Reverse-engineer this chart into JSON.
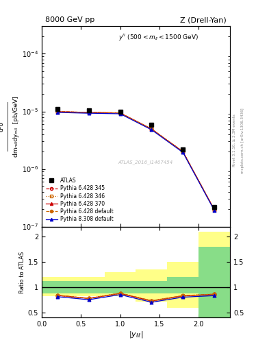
{
  "title_left": "8000 GeV pp",
  "title_right": "Z (Drell-Yan)",
  "annotation": "y^{ll} (500 < m_{ll} < 1500 GeV)",
  "watermark": "ATLAS_2016_I1467454",
  "right_label_top": "Rivet 3.1.10, ≥ 2.3M events",
  "right_label_bot": "mcplots.cern.ch [arXiv:1306.3436]",
  "xlabel": "|y_{ellell}|",
  "x_data": [
    0.2,
    0.6,
    1.0,
    1.4,
    1.8,
    2.2
  ],
  "atlas_y": [
    1.1e-05,
    1.05e-05,
    9.8e-06,
    5.8e-06,
    2.2e-06,
    2.2e-07
  ],
  "pythia_345_y": [
    9.9e-06,
    9.6e-06,
    9.4e-06,
    4.95e-06,
    2e-06,
    1.97e-07
  ],
  "pythia_346_y": [
    9.9e-06,
    9.6e-06,
    9.4e-06,
    4.95e-06,
    2e-06,
    1.97e-07
  ],
  "pythia_370_y": [
    9.9e-06,
    9.6e-06,
    9.4e-06,
    4.95e-06,
    2e-06,
    1.97e-07
  ],
  "pythia_def_y": [
    9.9e-06,
    9.6e-06,
    9.4e-06,
    4.95e-06,
    2e-06,
    1.97e-07
  ],
  "pythia8_y": [
    9.6e-06,
    9.3e-06,
    9.1e-06,
    4.8e-06,
    1.94e-06,
    1.91e-07
  ],
  "ratio_345": [
    0.84,
    0.78,
    0.88,
    0.73,
    0.83,
    0.86
  ],
  "ratio_346": [
    0.84,
    0.785,
    0.88,
    0.735,
    0.835,
    0.865
  ],
  "ratio_370": [
    0.84,
    0.78,
    0.88,
    0.73,
    0.83,
    0.86
  ],
  "ratio_def": [
    0.845,
    0.78,
    0.885,
    0.735,
    0.835,
    0.865
  ],
  "ratio_p8": [
    0.815,
    0.755,
    0.855,
    0.705,
    0.805,
    0.835
  ],
  "band_x_edges": [
    0.0,
    0.4,
    0.8,
    1.2,
    1.6,
    2.0,
    2.4
  ],
  "band_yellow_low": [
    0.82,
    0.82,
    0.82,
    0.72,
    0.6,
    0.4,
    0.4
  ],
  "band_yellow_high": [
    1.2,
    1.2,
    1.3,
    1.35,
    1.5,
    2.1,
    2.1
  ],
  "band_green_low": [
    0.88,
    0.88,
    0.88,
    0.88,
    0.88,
    0.4,
    0.4
  ],
  "band_green_high": [
    1.13,
    1.13,
    1.13,
    1.13,
    1.2,
    1.8,
    1.8
  ],
  "color_345": "#cc0000",
  "color_346": "#cc6600",
  "color_370": "#cc0000",
  "color_def": "#cc6600",
  "color_p8": "#0000cc",
  "ylim_main": [
    1e-07,
    0.0003
  ],
  "ylim_ratio": [
    0.4,
    2.2
  ],
  "xlim": [
    0.0,
    2.4
  ]
}
